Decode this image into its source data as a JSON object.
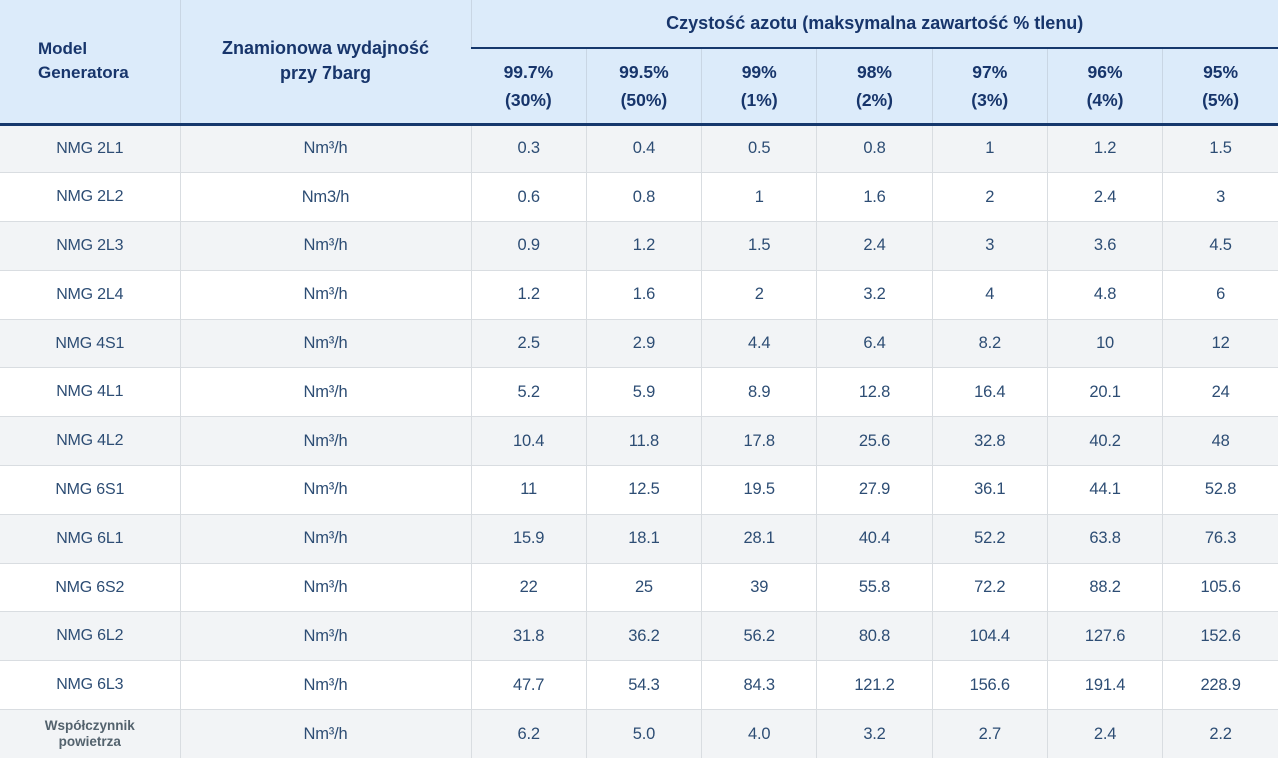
{
  "header": {
    "model_line1": "Model",
    "model_line2": "Generatora",
    "capacity_line1": "Znamionowa wydajność",
    "capacity_line2": "przy 7barg",
    "group_title": "Czystość azotu (maksymalna zawartość % tlenu)",
    "purity_columns": [
      {
        "purity": "99.7%",
        "oxygen": "(30%)"
      },
      {
        "purity": "99.5%",
        "oxygen": "(50%)"
      },
      {
        "purity": "99%",
        "oxygen": "(1%)"
      },
      {
        "purity": "98%",
        "oxygen": "(2%)"
      },
      {
        "purity": "97%",
        "oxygen": "(3%)"
      },
      {
        "purity": "96%",
        "oxygen": "(4%)"
      },
      {
        "purity": "95%",
        "oxygen": "(5%)"
      }
    ]
  },
  "rows": [
    {
      "model": "NMG 2L1",
      "unit": "Nm³/h",
      "values": [
        "0.3",
        "0.4",
        "0.5",
        "0.8",
        "1",
        "1.2",
        "1.5"
      ]
    },
    {
      "model": "NMG 2L2",
      "unit": "Nm3/h",
      "values": [
        "0.6",
        "0.8",
        "1",
        "1.6",
        "2",
        "2.4",
        "3"
      ]
    },
    {
      "model": "NMG 2L3",
      "unit": "Nm³/h",
      "values": [
        "0.9",
        "1.2",
        "1.5",
        "2.4",
        "3",
        "3.6",
        "4.5"
      ]
    },
    {
      "model": "NMG 2L4",
      "unit": "Nm³/h",
      "values": [
        "1.2",
        "1.6",
        "2",
        "3.2",
        "4",
        "4.8",
        "6"
      ]
    },
    {
      "model": "NMG 4S1",
      "unit": "Nm³/h",
      "values": [
        "2.5",
        "2.9",
        "4.4",
        "6.4",
        "8.2",
        "10",
        "12"
      ]
    },
    {
      "model": "NMG 4L1",
      "unit": "Nm³/h",
      "values": [
        "5.2",
        "5.9",
        "8.9",
        "12.8",
        "16.4",
        "20.1",
        "24"
      ]
    },
    {
      "model": "NMG 4L2",
      "unit": "Nm³/h",
      "values": [
        "10.4",
        "11.8",
        "17.8",
        "25.6",
        "32.8",
        "40.2",
        "48"
      ]
    },
    {
      "model": "NMG 6S1",
      "unit": "Nm³/h",
      "values": [
        "11",
        "12.5",
        "19.5",
        "27.9",
        "36.1",
        "44.1",
        "52.8"
      ]
    },
    {
      "model": "NMG 6L1",
      "unit": "Nm³/h",
      "values": [
        "15.9",
        "18.1",
        "28.1",
        "40.4",
        "52.2",
        "63.8",
        "76.3"
      ]
    },
    {
      "model": "NMG 6S2",
      "unit": "Nm³/h",
      "values": [
        "22",
        "25",
        "39",
        "55.8",
        "72.2",
        "88.2",
        "105.6"
      ]
    },
    {
      "model": "NMG 6L2",
      "unit": "Nm³/h",
      "values": [
        "31.8",
        "36.2",
        "56.2",
        "80.8",
        "104.4",
        "127.6",
        "152.6"
      ]
    },
    {
      "model": "NMG 6L3",
      "unit": "Nm³/h",
      "values": [
        "47.7",
        "54.3",
        "84.3",
        "121.2",
        "156.6",
        "191.4",
        "228.9"
      ]
    },
    {
      "model": "Współczynnik powietrza",
      "unit": "Nm³/h",
      "values": [
        "6.2",
        "5.0",
        "4.0",
        "3.2",
        "2.7",
        "2.4",
        "2.2"
      ]
    }
  ],
  "colors": {
    "header_background": "#dcebfa",
    "header_text": "#17356b",
    "navy_border": "#16386c",
    "body_text": "#2d4d74",
    "stripe_row": "#f2f4f6",
    "grid_line": "#d9dde1",
    "footer_label_text": "#53626d"
  },
  "chart_data": {
    "type": "table",
    "title": "Czystość azotu (maksymalna zawartość % tlenu)",
    "columns": [
      "Model Generatora",
      "Znamionowa wydajność przy 7barg",
      "99.7% (30%)",
      "99.5% (50%)",
      "99% (1%)",
      "98% (2%)",
      "97% (3%)",
      "96% (4%)",
      "95% (5%)"
    ],
    "rows": [
      [
        "NMG 2L1",
        "Nm³/h",
        0.3,
        0.4,
        0.5,
        0.8,
        1,
        1.2,
        1.5
      ],
      [
        "NMG 2L2",
        "Nm3/h",
        0.6,
        0.8,
        1,
        1.6,
        2,
        2.4,
        3
      ],
      [
        "NMG 2L3",
        "Nm³/h",
        0.9,
        1.2,
        1.5,
        2.4,
        3,
        3.6,
        4.5
      ],
      [
        "NMG 2L4",
        "Nm³/h",
        1.2,
        1.6,
        2,
        3.2,
        4,
        4.8,
        6
      ],
      [
        "NMG 4S1",
        "Nm³/h",
        2.5,
        2.9,
        4.4,
        6.4,
        8.2,
        10,
        12
      ],
      [
        "NMG 4L1",
        "Nm³/h",
        5.2,
        5.9,
        8.9,
        12.8,
        16.4,
        20.1,
        24
      ],
      [
        "NMG 4L2",
        "Nm³/h",
        10.4,
        11.8,
        17.8,
        25.6,
        32.8,
        40.2,
        48
      ],
      [
        "NMG 6S1",
        "Nm³/h",
        11,
        12.5,
        19.5,
        27.9,
        36.1,
        44.1,
        52.8
      ],
      [
        "NMG 6L1",
        "Nm³/h",
        15.9,
        18.1,
        28.1,
        40.4,
        52.2,
        63.8,
        76.3
      ],
      [
        "NMG 6S2",
        "Nm³/h",
        22,
        25,
        39,
        55.8,
        72.2,
        88.2,
        105.6
      ],
      [
        "NMG 6L2",
        "Nm³/h",
        31.8,
        36.2,
        56.2,
        80.8,
        104.4,
        127.6,
        152.6
      ],
      [
        "NMG 6L3",
        "Nm³/h",
        47.7,
        54.3,
        84.3,
        121.2,
        156.6,
        191.4,
        228.9
      ],
      [
        "Współczynnik powietrza",
        "Nm³/h",
        6.2,
        5.0,
        4.0,
        3.2,
        2.7,
        2.4,
        2.2
      ]
    ]
  }
}
